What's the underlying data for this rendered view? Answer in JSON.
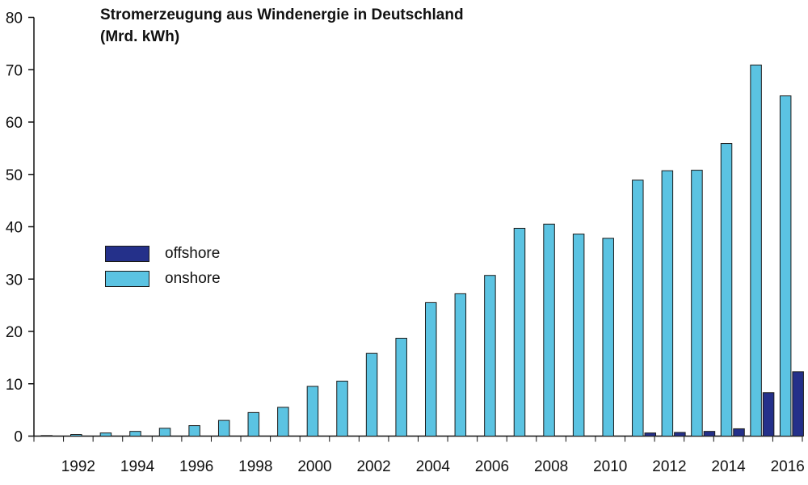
{
  "chart_data": {
    "type": "bar",
    "title": "Stromerzeugung aus Windenergie in Deutschland",
    "subtitle": "(Mrd. kWh)",
    "xlabel": "",
    "ylabel": "",
    "ylim": [
      0,
      80
    ],
    "yticks": [
      0,
      10,
      20,
      30,
      40,
      50,
      60,
      70,
      80
    ],
    "categories": [
      1991,
      1992,
      1993,
      1994,
      1995,
      1996,
      1997,
      1998,
      1999,
      2000,
      2001,
      2002,
      2003,
      2004,
      2005,
      2006,
      2007,
      2008,
      2009,
      2010,
      2011,
      2012,
      2013,
      2014,
      2015,
      2016
    ],
    "xtick_labels": [
      "1992",
      "1994",
      "1996",
      "1998",
      "2000",
      "2002",
      "2004",
      "2006",
      "2008",
      "2010",
      "2012",
      "2014",
      "2016"
    ],
    "series": [
      {
        "name": "onshore",
        "color": "#5bc3e2",
        "values": [
          0.1,
          0.3,
          0.6,
          0.9,
          1.5,
          2.0,
          3.0,
          4.5,
          5.5,
          9.5,
          10.5,
          15.8,
          18.7,
          25.5,
          27.2,
          30.7,
          39.7,
          40.5,
          38.6,
          37.8,
          48.9,
          50.7,
          50.8,
          55.9,
          70.9,
          65.0
        ]
      },
      {
        "name": "offshore",
        "color": "#24308a",
        "values": [
          0,
          0,
          0,
          0,
          0,
          0,
          0,
          0,
          0,
          0,
          0,
          0,
          0,
          0,
          0,
          0,
          0,
          0,
          0,
          0,
          0.6,
          0.7,
          0.9,
          1.4,
          8.3,
          12.3
        ]
      }
    ],
    "legend": "left",
    "grid": false
  }
}
